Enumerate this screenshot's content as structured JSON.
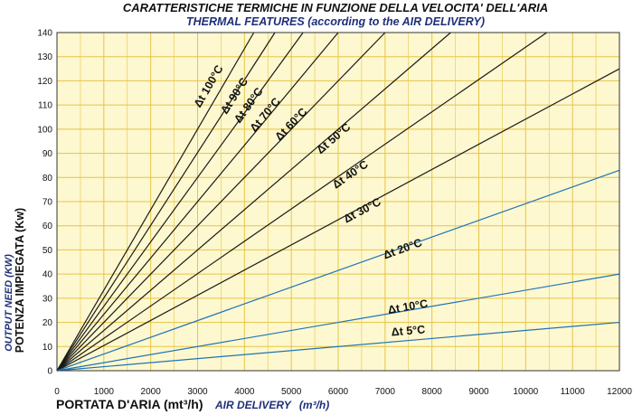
{
  "chart_data": {
    "type": "line",
    "title": "CARATTERISTICHE TERMICHE IN FUNZIONE DELLA VELOCITA' DELL'ARIA",
    "subtitle": "THERMAL FEATURES (according to the AIR DELIVERY)",
    "xlabel": "PORTATA D'ARIA (mt³/h)",
    "xlabel_en": "AIR DELIVERY",
    "xlabel_en_unit": "(m³/h)",
    "ylabel": "POTENZA IMPIEGATA (Kw)",
    "ylabel_en": "OUTPUT NEED (KW)",
    "xlim": [
      0,
      12000
    ],
    "ylim": [
      0,
      140
    ],
    "x_ticks": [
      0,
      1000,
      2000,
      3000,
      4000,
      5000,
      6000,
      7000,
      8000,
      9000,
      10000,
      11000,
      12000
    ],
    "y_ticks": [
      0,
      10,
      20,
      30,
      40,
      50,
      60,
      70,
      80,
      90,
      100,
      110,
      120,
      130,
      140
    ],
    "grid": true,
    "background_color": "#fdf8cf",
    "grid_color": "#e6c447",
    "series": [
      {
        "name": "Δt 100°C",
        "x": [
          0,
          4200
        ],
        "y": [
          0,
          140
        ],
        "color": "#1a1a1a"
      },
      {
        "name": "Δt 90°C",
        "x": [
          0,
          4650
        ],
        "y": [
          0,
          140
        ],
        "color": "#1a1a1a"
      },
      {
        "name": "Δt 80°C",
        "x": [
          0,
          5250
        ],
        "y": [
          0,
          140
        ],
        "color": "#1a1a1a"
      },
      {
        "name": "Δt 70°C",
        "x": [
          0,
          6000
        ],
        "y": [
          0,
          140
        ],
        "color": "#1a1a1a"
      },
      {
        "name": "Δt 60°C",
        "x": [
          0,
          7000
        ],
        "y": [
          0,
          140
        ],
        "color": "#1a1a1a"
      },
      {
        "name": "Δt 50°C",
        "x": [
          0,
          8400
        ],
        "y": [
          0,
          140
        ],
        "color": "#1a1a1a"
      },
      {
        "name": "Δt 40°C",
        "x": [
          0,
          10450
        ],
        "y": [
          0,
          140
        ],
        "color": "#1a1a1a"
      },
      {
        "name": "Δt 30°C",
        "x": [
          0,
          12000
        ],
        "y": [
          0,
          125
        ],
        "color": "#1a1a1a"
      },
      {
        "name": "Δt 20°C",
        "x": [
          0,
          12000
        ],
        "y": [
          0,
          83
        ],
        "color": "#1e73b8"
      },
      {
        "name": "Δt 10°C",
        "x": [
          0,
          12000
        ],
        "y": [
          0,
          40
        ],
        "color": "#1e73b8"
      },
      {
        "name": "Δt 5°C",
        "x": [
          0,
          12000
        ],
        "y": [
          0,
          20
        ],
        "color": "#1e73b8"
      }
    ],
    "annotations": [
      {
        "text": "Δt 100°C",
        "x": 3300,
        "y": 117
      },
      {
        "text": "Δt 90°C",
        "x": 3850,
        "y": 113
      },
      {
        "text": "Δt 80°C",
        "x": 4150,
        "y": 109
      },
      {
        "text": "Δt 70°C",
        "x": 4500,
        "y": 105
      },
      {
        "text": "Δt 60°C",
        "x": 5050,
        "y": 101
      },
      {
        "text": "Δt 50°C",
        "x": 5950,
        "y": 95
      },
      {
        "text": "Δt 40°C",
        "x": 6300,
        "y": 80
      },
      {
        "text": "Δt 30°C",
        "x": 6550,
        "y": 65
      },
      {
        "text": "Δt 20°C",
        "x": 7400,
        "y": 49
      },
      {
        "text": "Δt 10°C",
        "x": 7500,
        "y": 25
      },
      {
        "text": "Δt 5°C",
        "x": 7500,
        "y": 15
      }
    ]
  }
}
